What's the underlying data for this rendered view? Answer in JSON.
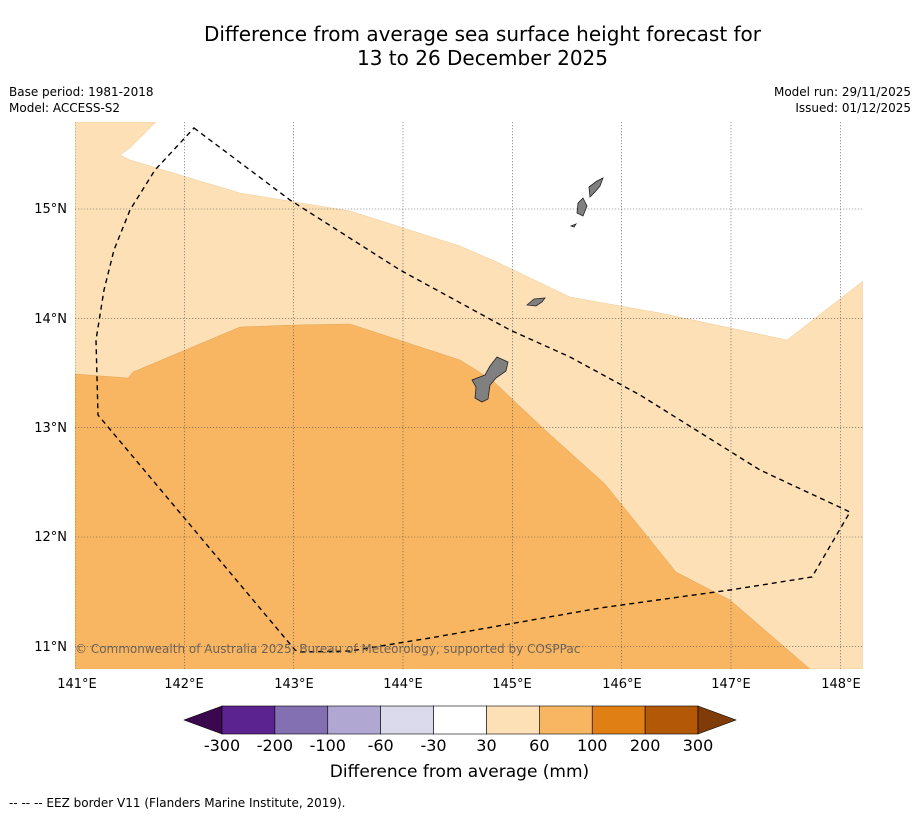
{
  "title": {
    "line1": "Difference from average sea surface height forecast for",
    "line2": "13 to 26 December 2025"
  },
  "meta": {
    "base_period": "Base period: 1981-2018",
    "model": "Model: ACCESS-S2",
    "model_run": "Model run: 29/11/2025",
    "issued": "Issued: 01/12/2025"
  },
  "map": {
    "lon_labels": [
      "141°E",
      "142°E",
      "143°E",
      "144°E",
      "145°E",
      "146°E",
      "147°E",
      "148°E"
    ],
    "lat_labels": [
      "15°N",
      "14°N",
      "13°N",
      "12°N",
      "11°N"
    ],
    "copyright": "© Commonwealth of Australia 2025, Bureau of Meteorology, supported by COSPPac",
    "islands": [
      "Guam",
      "Rota",
      "Tinian",
      "Saipan"
    ],
    "colors": {
      "land": "#808080",
      "class_30_60": "#fde0b6",
      "class_60_100": "#f9b662"
    }
  },
  "colorbar": {
    "colors": [
      "#3b0850",
      "#5a2390",
      "#8270b2",
      "#b0a8d2",
      "#dadaec",
      "#ffffff",
      "#fde0b6",
      "#f9b662",
      "#e08014",
      "#b35806",
      "#7f3b08"
    ],
    "labels": [
      "-300",
      "-200",
      "-100",
      "-60",
      "-30",
      "30",
      "60",
      "100",
      "200",
      "300"
    ],
    "title": "Difference from average (mm)"
  },
  "footnote": "--  --  -- EEZ border V11 (Flanders Marine Institute, 2019)."
}
